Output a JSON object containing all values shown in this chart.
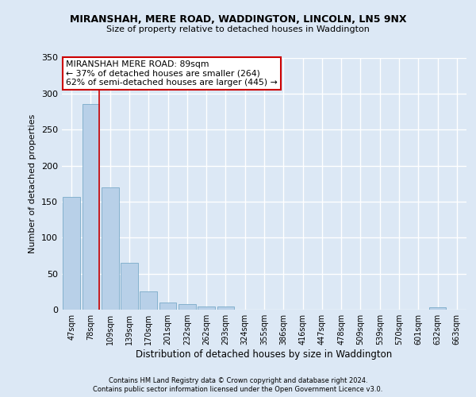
{
  "title": "MIRANSHAH, MERE ROAD, WADDINGTON, LINCOLN, LN5 9NX",
  "subtitle": "Size of property relative to detached houses in Waddington",
  "xlabel": "Distribution of detached houses by size in Waddington",
  "ylabel": "Number of detached properties",
  "bin_labels": [
    "47sqm",
    "78sqm",
    "109sqm",
    "139sqm",
    "170sqm",
    "201sqm",
    "232sqm",
    "262sqm",
    "293sqm",
    "324sqm",
    "355sqm",
    "386sqm",
    "416sqm",
    "447sqm",
    "478sqm",
    "509sqm",
    "539sqm",
    "570sqm",
    "601sqm",
    "632sqm",
    "663sqm"
  ],
  "bar_heights": [
    157,
    286,
    170,
    65,
    25,
    10,
    8,
    4,
    4,
    0,
    0,
    0,
    0,
    0,
    0,
    0,
    0,
    0,
    0,
    3,
    0
  ],
  "bar_color": "#b8d0e8",
  "bar_edge_color": "#7aaac8",
  "property_line_x": 1.42,
  "property_line_color": "#cc0000",
  "ylim": [
    0,
    350
  ],
  "yticks": [
    0,
    50,
    100,
    150,
    200,
    250,
    300,
    350
  ],
  "bg_color": "#dce8f5",
  "grid_color": "#ffffff",
  "annotation_title": "MIRANSHAH MERE ROAD: 89sqm",
  "annotation_line1": "← 37% of detached houses are smaller (264)",
  "annotation_line2": "62% of semi-detached houses are larger (445) →",
  "annotation_box_color": "#ffffff",
  "annotation_border_color": "#cc0000",
  "footnote1": "Contains HM Land Registry data © Crown copyright and database right 2024.",
  "footnote2": "Contains public sector information licensed under the Open Government Licence v3.0."
}
